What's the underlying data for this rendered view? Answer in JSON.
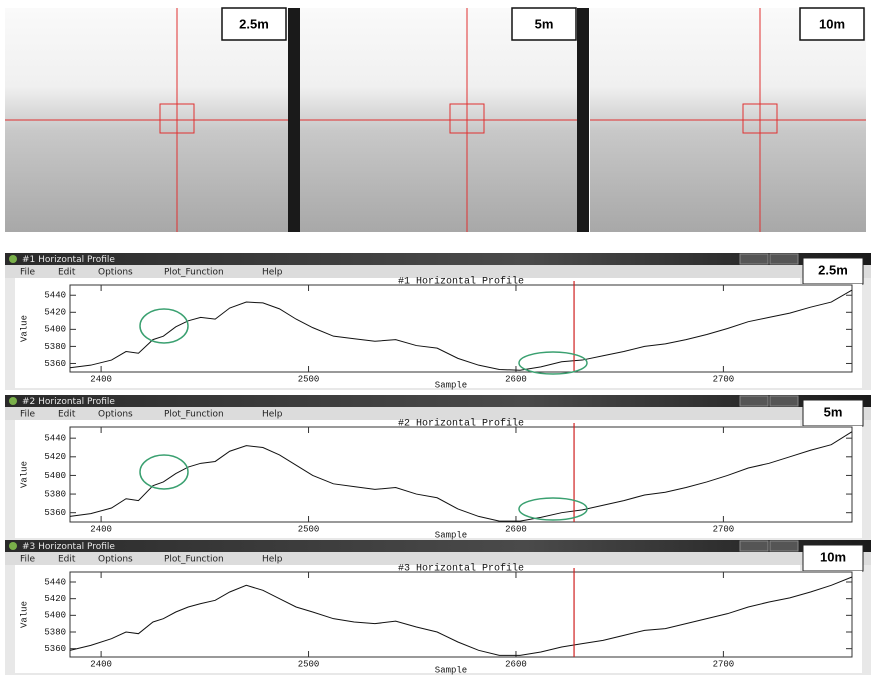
{
  "images": [
    {
      "label": "2.5m"
    },
    {
      "label": "5m"
    },
    {
      "label": "10m"
    }
  ],
  "windows": [
    {
      "title": "#1 Horizontal Profile",
      "menu": [
        "File",
        "Edit",
        "Options",
        "Plot_Function",
        "Help"
      ],
      "label": "2.5m",
      "chart_data": {
        "type": "line",
        "title": "#1 Horizontal Profile",
        "x_label": "Sample",
        "y_label": "Value",
        "x": [
          2385,
          2395,
          2405,
          2412,
          2418,
          2425,
          2430,
          2436,
          2442,
          2448,
          2455,
          2462,
          2470,
          2478,
          2486,
          2494,
          2502,
          2512,
          2522,
          2532,
          2542,
          2552,
          2562,
          2572,
          2582,
          2592,
          2602,
          2612,
          2622,
          2632,
          2642,
          2652,
          2662,
          2672,
          2682,
          2692,
          2702,
          2712,
          2722,
          2732,
          2742,
          2752,
          2762
        ],
        "values": [
          5355,
          5358,
          5364,
          5374,
          5372,
          5388,
          5392,
          5403,
          5410,
          5414,
          5412,
          5425,
          5432,
          5431,
          5424,
          5412,
          5402,
          5392,
          5389,
          5386,
          5388,
          5381,
          5378,
          5366,
          5358,
          5353,
          5352,
          5356,
          5362,
          5364,
          5369,
          5374,
          5380,
          5383,
          5388,
          5394,
          5401,
          5409,
          5414,
          5419,
          5426,
          5432,
          5446
        ],
        "xlim": [
          2385,
          2762
        ],
        "ylim": [
          5350,
          5452
        ],
        "xticks": [
          2400,
          2500,
          2600,
          2700
        ],
        "yticks": [
          5360,
          5380,
          5400,
          5420,
          5440
        ],
        "color": "#111111",
        "crosshair_x": 2628
      }
    },
    {
      "title": "#2 Horizontal Profile",
      "menu": [
        "File",
        "Edit",
        "Options",
        "Plot_Function",
        "Help"
      ],
      "label": "5m",
      "chart_data": {
        "type": "line",
        "title": "#2 Horizontal Profile",
        "x_label": "Sample",
        "y_label": "Value",
        "x": [
          2385,
          2395,
          2405,
          2412,
          2418,
          2425,
          2430,
          2436,
          2442,
          2448,
          2455,
          2462,
          2470,
          2478,
          2486,
          2494,
          2502,
          2512,
          2522,
          2532,
          2542,
          2552,
          2562,
          2572,
          2582,
          2592,
          2602,
          2612,
          2622,
          2632,
          2642,
          2652,
          2662,
          2672,
          2682,
          2692,
          2702,
          2712,
          2722,
          2732,
          2742,
          2752,
          2762
        ],
        "values": [
          5356,
          5359,
          5365,
          5375,
          5373,
          5389,
          5393,
          5402,
          5409,
          5413,
          5415,
          5426,
          5432,
          5430,
          5422,
          5411,
          5400,
          5391,
          5388,
          5385,
          5387,
          5380,
          5376,
          5364,
          5356,
          5351,
          5351,
          5355,
          5360,
          5363,
          5368,
          5373,
          5379,
          5382,
          5387,
          5393,
          5400,
          5408,
          5413,
          5420,
          5427,
          5433,
          5447
        ],
        "xlim": [
          2385,
          2762
        ],
        "ylim": [
          5350,
          5452
        ],
        "xticks": [
          2400,
          2500,
          2600,
          2700
        ],
        "yticks": [
          5360,
          5380,
          5400,
          5420,
          5440
        ],
        "color": "#111111",
        "crosshair_x": 2628
      }
    },
    {
      "title": "#3 Horizontal Profile",
      "menu": [
        "File",
        "Edit",
        "Options",
        "Plot_Function",
        "Help"
      ],
      "label": "10m",
      "chart_data": {
        "type": "line",
        "title": "#3 Horizontal Profile",
        "x_label": "Sample",
        "y_label": "Value",
        "x": [
          2385,
          2395,
          2405,
          2412,
          2418,
          2425,
          2430,
          2436,
          2442,
          2448,
          2455,
          2462,
          2470,
          2478,
          2486,
          2494,
          2502,
          2512,
          2522,
          2532,
          2542,
          2552,
          2562,
          2572,
          2582,
          2592,
          2602,
          2612,
          2622,
          2632,
          2642,
          2652,
          2662,
          2672,
          2682,
          2692,
          2702,
          2712,
          2722,
          2732,
          2742,
          2752,
          2762
        ],
        "values": [
          5358,
          5364,
          5372,
          5380,
          5378,
          5392,
          5396,
          5404,
          5410,
          5414,
          5418,
          5428,
          5436,
          5430,
          5420,
          5410,
          5404,
          5396,
          5392,
          5390,
          5393,
          5386,
          5380,
          5368,
          5358,
          5352,
          5352,
          5356,
          5362,
          5366,
          5370,
          5376,
          5382,
          5384,
          5390,
          5396,
          5402,
          5410,
          5416,
          5421,
          5428,
          5436,
          5446
        ],
        "xlim": [
          2385,
          2762
        ],
        "ylim": [
          5350,
          5452
        ],
        "xticks": [
          2400,
          2500,
          2600,
          2700
        ],
        "yticks": [
          5360,
          5380,
          5400,
          5420,
          5440
        ],
        "color": "#111111",
        "crosshair_x": 2628
      }
    }
  ]
}
